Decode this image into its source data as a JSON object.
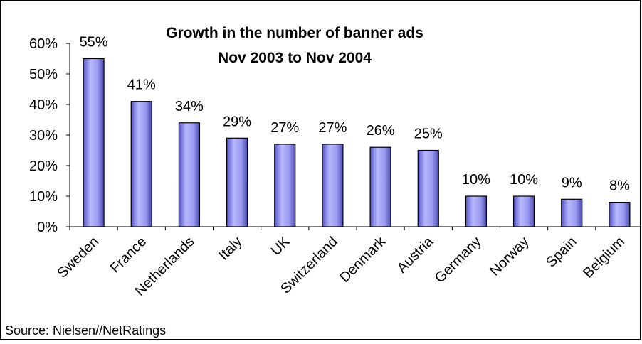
{
  "chart_data": {
    "type": "bar",
    "title": "Growth in the number of banner ads",
    "subtitle": "Nov 2003 to Nov 2004",
    "categories": [
      "Sweden",
      "France",
      "Netherlands",
      "Italy",
      "UK",
      "Switzerland",
      "Denmark",
      "Austria",
      "Germany",
      "Norway",
      "Spain",
      "Belgium"
    ],
    "values": [
      55,
      41,
      34,
      29,
      27,
      27,
      26,
      25,
      10,
      10,
      9,
      8
    ],
    "data_labels": [
      "55%",
      "41%",
      "34%",
      "29%",
      "27%",
      "27%",
      "26%",
      "25%",
      "10%",
      "10%",
      "9%",
      "8%"
    ],
    "y_ticks": [
      "0%",
      "10%",
      "20%",
      "30%",
      "40%",
      "50%",
      "60%"
    ],
    "ylim": [
      0,
      60
    ],
    "xlabel": "",
    "ylabel": "",
    "grid": false,
    "legend": "none",
    "bar_color": "#9a9af0",
    "bar_edge_color": "#000000",
    "source": "Source: Nielsen//NetRatings"
  }
}
